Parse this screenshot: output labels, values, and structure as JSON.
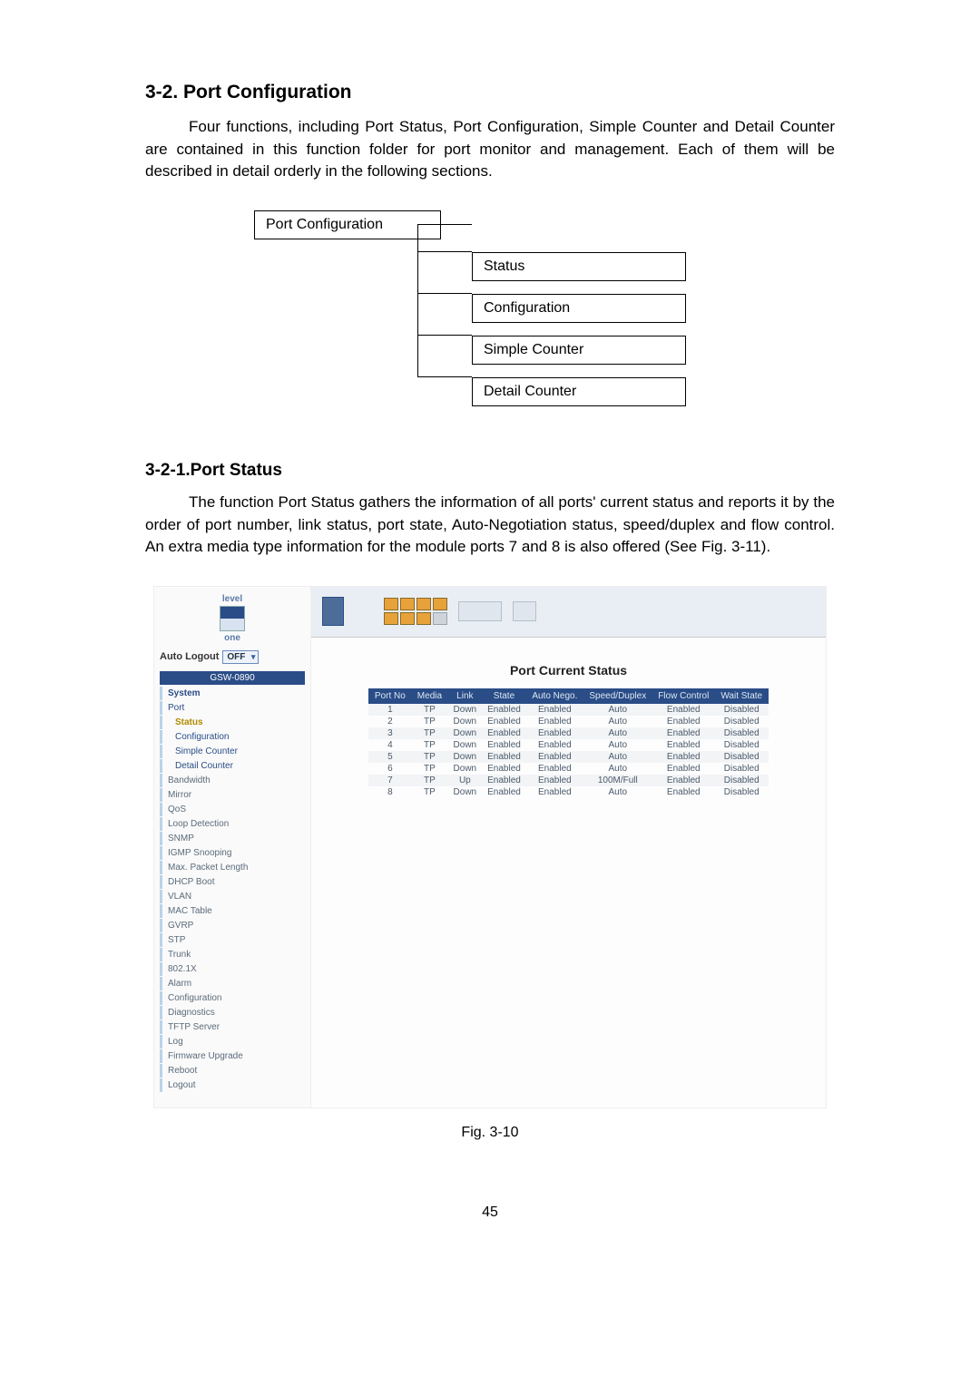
{
  "section": {
    "h1": "3-2. Port Configuration",
    "p1": "Four functions, including Port Status, Port Configuration, Simple Counter and Detail Counter are contained in this function folder for port monitor and management. Each of them will be described in detail orderly in the following sections.",
    "h2": "3-2-1.Port Status",
    "p2": "The function Port Status gathers the information of all ports' current status and reports it by the order of port number, link status, port state, Auto-Negotiation status, speed/duplex and flow control. An extra media type information for the module ports 7 and 8 is also offered (See Fig. 3-11)."
  },
  "tree": {
    "root": "Port Configuration",
    "leaves": [
      "Status",
      "Configuration",
      "Simple Counter",
      "Detail Counter"
    ]
  },
  "screenshot": {
    "logo_top": "level",
    "logo_bot": "one",
    "auto_logout_label": "Auto Logout",
    "auto_logout_value": "OFF",
    "model": "GSW-0890",
    "nav": [
      {
        "label": "System",
        "cls": "group"
      },
      {
        "label": "Port",
        "cls": "blue"
      },
      {
        "label": "Status",
        "cls": "sel-item indent"
      },
      {
        "label": "Configuration",
        "cls": "blue indent"
      },
      {
        "label": "Simple Counter",
        "cls": "blue indent"
      },
      {
        "label": "Detail Counter",
        "cls": "blue indent"
      },
      {
        "label": "Bandwidth",
        "cls": ""
      },
      {
        "label": "Mirror",
        "cls": ""
      },
      {
        "label": "QoS",
        "cls": ""
      },
      {
        "label": "Loop Detection",
        "cls": ""
      },
      {
        "label": "SNMP",
        "cls": ""
      },
      {
        "label": "IGMP Snooping",
        "cls": ""
      },
      {
        "label": "Max. Packet Length",
        "cls": ""
      },
      {
        "label": "DHCP Boot",
        "cls": ""
      },
      {
        "label": "VLAN",
        "cls": ""
      },
      {
        "label": "MAC Table",
        "cls": ""
      },
      {
        "label": "GVRP",
        "cls": ""
      },
      {
        "label": "STP",
        "cls": ""
      },
      {
        "label": "Trunk",
        "cls": ""
      },
      {
        "label": "802.1X",
        "cls": ""
      },
      {
        "label": "Alarm",
        "cls": ""
      },
      {
        "label": "Configuration",
        "cls": ""
      },
      {
        "label": "Diagnostics",
        "cls": ""
      },
      {
        "label": "TFTP Server",
        "cls": ""
      },
      {
        "label": "Log",
        "cls": ""
      },
      {
        "label": "Firmware Upgrade",
        "cls": ""
      },
      {
        "label": "Reboot",
        "cls": ""
      },
      {
        "label": "Logout",
        "cls": ""
      }
    ],
    "title": "Port Current Status",
    "table": {
      "headers": [
        "Port No",
        "Media",
        "Link",
        "State",
        "Auto Nego.",
        "Speed/Duplex",
        "Flow Control",
        "Wait State"
      ],
      "rows": [
        [
          "1",
          "TP",
          "Down",
          "Enabled",
          "Enabled",
          "Auto",
          "Enabled",
          "Disabled"
        ],
        [
          "2",
          "TP",
          "Down",
          "Enabled",
          "Enabled",
          "Auto",
          "Enabled",
          "Disabled"
        ],
        [
          "3",
          "TP",
          "Down",
          "Enabled",
          "Enabled",
          "Auto",
          "Enabled",
          "Disabled"
        ],
        [
          "4",
          "TP",
          "Down",
          "Enabled",
          "Enabled",
          "Auto",
          "Enabled",
          "Disabled"
        ],
        [
          "5",
          "TP",
          "Down",
          "Enabled",
          "Enabled",
          "Auto",
          "Enabled",
          "Disabled"
        ],
        [
          "6",
          "TP",
          "Down",
          "Enabled",
          "Enabled",
          "Auto",
          "Enabled",
          "Disabled"
        ],
        [
          "7",
          "TP",
          "Up",
          "Enabled",
          "Enabled",
          "100M/Full",
          "Enabled",
          "Disabled"
        ],
        [
          "8",
          "TP",
          "Down",
          "Enabled",
          "Enabled",
          "Auto",
          "Enabled",
          "Disabled"
        ]
      ]
    },
    "ports_on": 7
  },
  "fig_caption": "Fig. 3-10",
  "page_number": "45",
  "colors": {
    "header_bg": "#2a4d87",
    "header_fg": "#dce7f3",
    "nav_border": "#b9d3e8",
    "port_on": "#e7a23a",
    "port_off": "#cfd4da"
  }
}
